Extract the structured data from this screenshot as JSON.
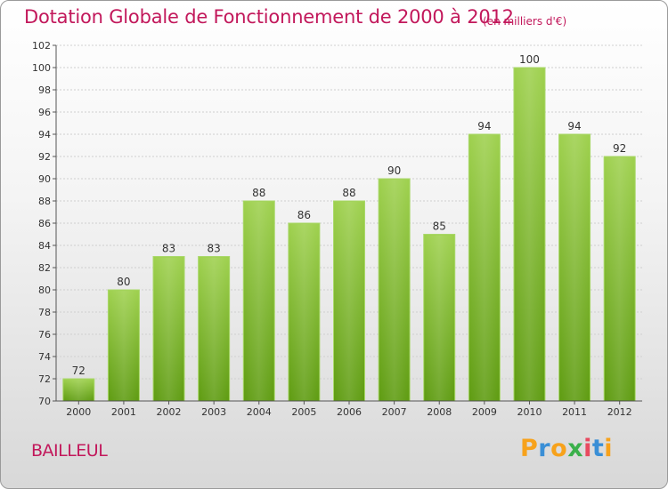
{
  "title": "Dotation Globale de Fonctionnement de 2000 à 2012",
  "subtitle": "(en milliers d'€)",
  "city": "BAILLEUL",
  "logo": {
    "letters": [
      "P",
      "r",
      "o",
      "x",
      "i",
      "t",
      "i"
    ],
    "colors": [
      "#f7a21b",
      "#3a8fd6",
      "#f7a21b",
      "#3ab04a",
      "#e84a5f",
      "#3a8fd6",
      "#f7a21b"
    ]
  },
  "chart_data": {
    "type": "bar",
    "title": "Dotation Globale de Fonctionnement de 2000 à 2012",
    "subtitle": "(en milliers d'€)",
    "categories": [
      "2000",
      "2001",
      "2002",
      "2003",
      "2004",
      "2005",
      "2006",
      "2007",
      "2008",
      "2009",
      "2010",
      "2011",
      "2012"
    ],
    "values": [
      72,
      80,
      83,
      83,
      88,
      86,
      88,
      90,
      85,
      94,
      100,
      94,
      92
    ],
    "xlabel": "",
    "ylabel": "",
    "ylim": [
      70,
      102
    ],
    "ytick_step": 2,
    "grid": true,
    "bar_color": "#7fbf2a"
  }
}
